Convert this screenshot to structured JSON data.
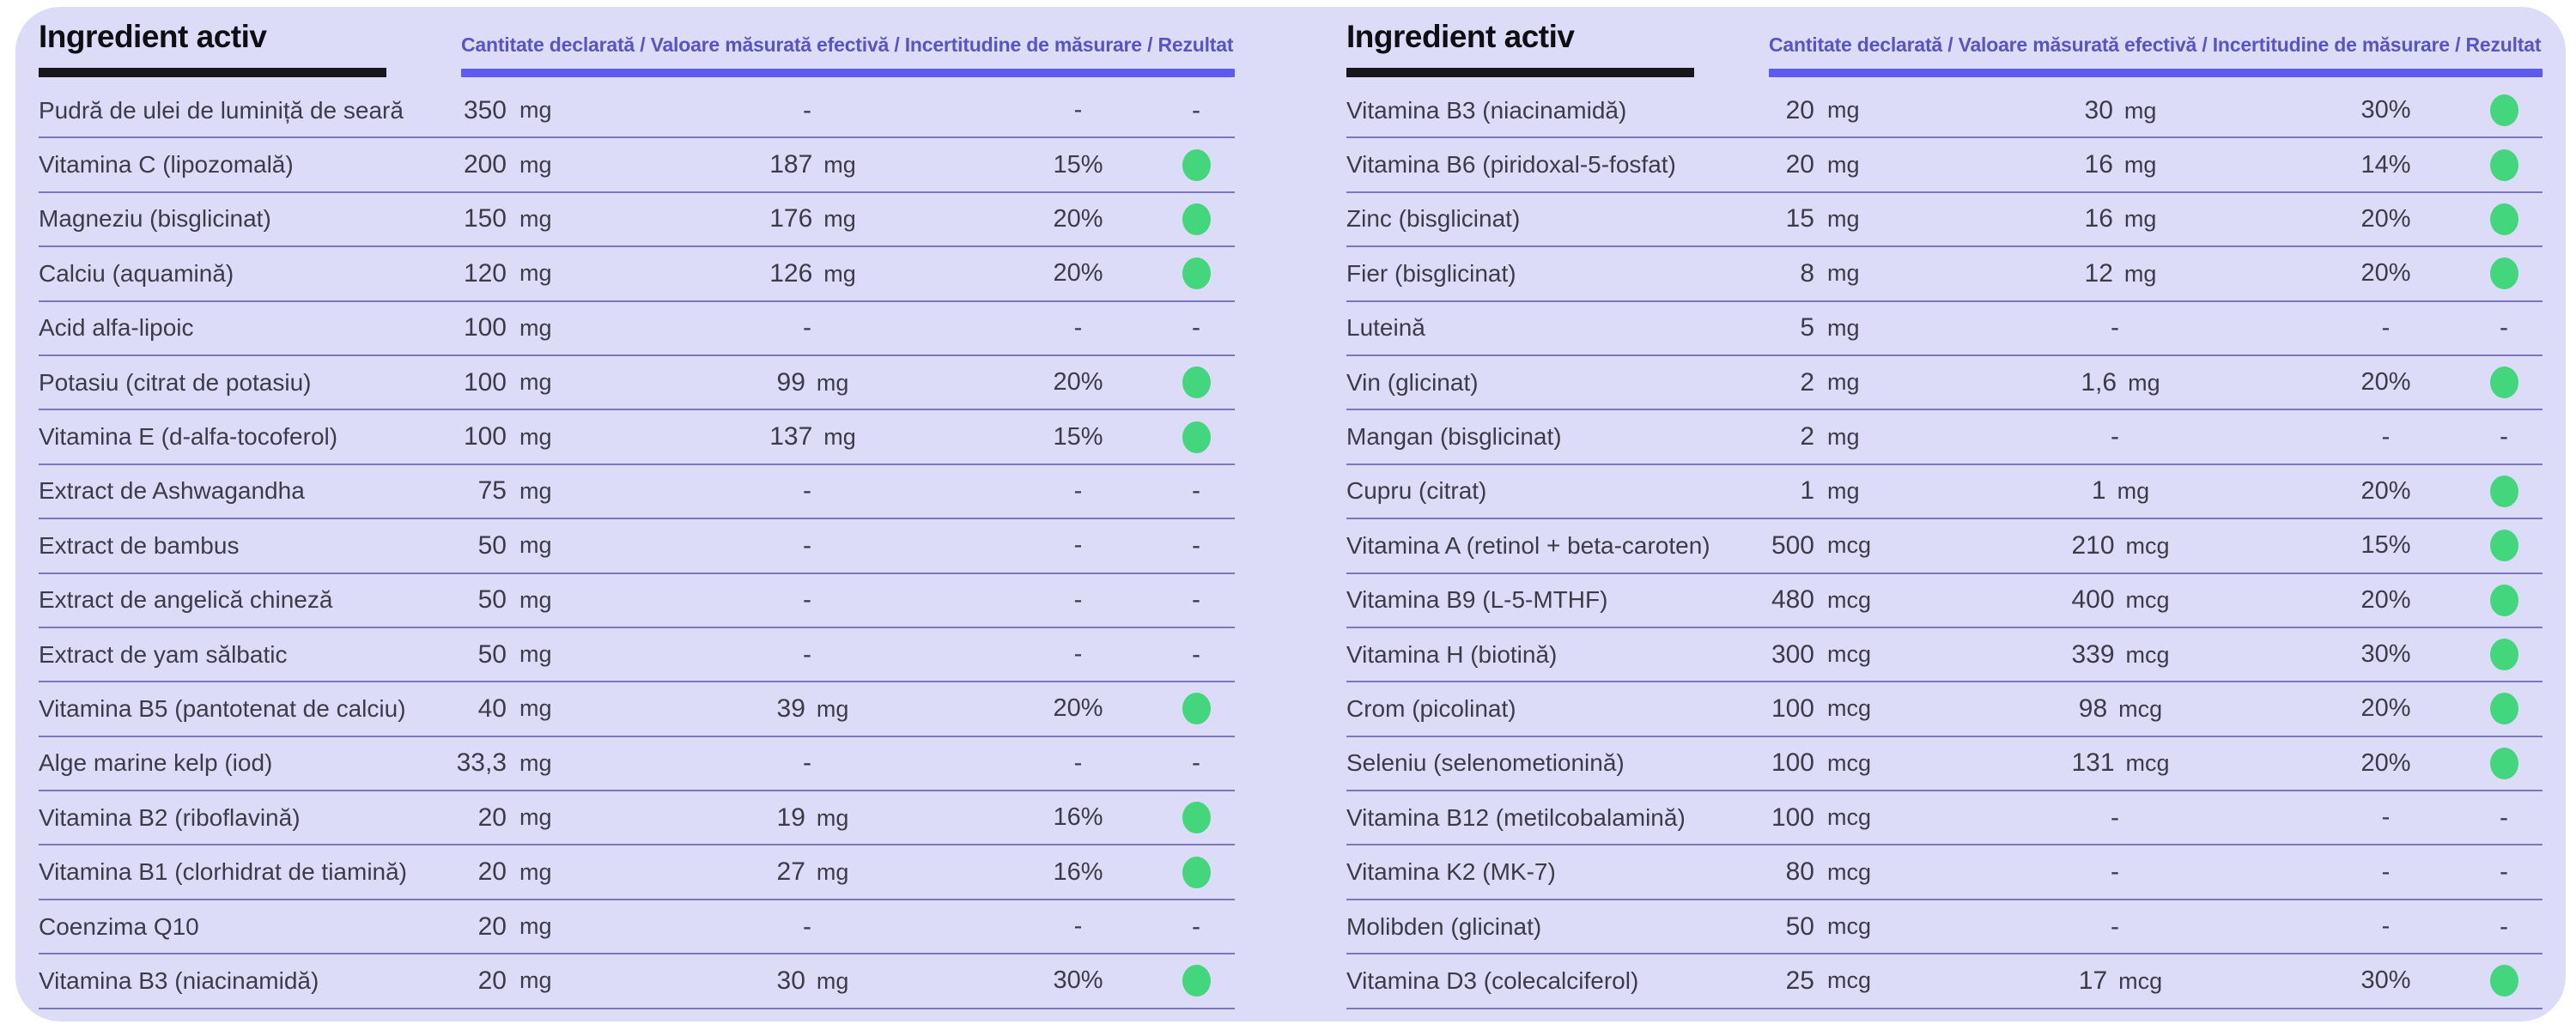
{
  "colors": {
    "page_background": "#ffffff",
    "panel_background": "#dcdcf8",
    "title_text": "#0f0e14",
    "title_underline": "#17161d",
    "columns_legend_text": "#5954c6",
    "columns_underline": "#5d5bef",
    "row_text": "#3c3b48",
    "row_separator": "#7b76bd",
    "pass_dot_green": "#43d67d"
  },
  "tables": [
    {
      "title": "Ingredient activ",
      "columns_label": "Cantitate declarată / Valoare măsurată efectivă / Incertitudine de măsurare / Rezultat",
      "rows": [
        {
          "name": "Pudră de ulei de luminiță de seară",
          "declared": "350",
          "declared_unit": "mg",
          "measured": "-",
          "measured_unit": "",
          "uncertainty": "-",
          "result": "-"
        },
        {
          "name": "Vitamina C (lipozomală)",
          "declared": "200",
          "declared_unit": "mg",
          "measured": "187",
          "measured_unit": "mg",
          "uncertainty": "15%",
          "result": "pass"
        },
        {
          "name": "Magneziu (bisglicinat)",
          "declared": "150",
          "declared_unit": "mg",
          "measured": "176",
          "measured_unit": "mg",
          "uncertainty": "20%",
          "result": "pass"
        },
        {
          "name": "Calciu (aquamină)",
          "declared": "120",
          "declared_unit": "mg",
          "measured": "126",
          "measured_unit": "mg",
          "uncertainty": "20%",
          "result": "pass"
        },
        {
          "name": "Acid alfa-lipoic",
          "declared": "100",
          "declared_unit": "mg",
          "measured": "-",
          "measured_unit": "",
          "uncertainty": "-",
          "result": "-"
        },
        {
          "name": "Potasiu (citrat de potasiu)",
          "declared": "100",
          "declared_unit": "mg",
          "measured": "99",
          "measured_unit": "mg",
          "uncertainty": "20%",
          "result": "pass"
        },
        {
          "name": "Vitamina E (d-alfa-tocoferol)",
          "declared": "100",
          "declared_unit": "mg",
          "measured": "137",
          "measured_unit": "mg",
          "uncertainty": "15%",
          "result": "pass"
        },
        {
          "name": "Extract de Ashwagandha",
          "declared": "75",
          "declared_unit": "mg",
          "measured": "-",
          "measured_unit": "",
          "uncertainty": "-",
          "result": "-"
        },
        {
          "name": "Extract de bambus",
          "declared": "50",
          "declared_unit": "mg",
          "measured": "-",
          "measured_unit": "",
          "uncertainty": "-",
          "result": "-"
        },
        {
          "name": "Extract de angelică chineză",
          "declared": "50",
          "declared_unit": "mg",
          "measured": "-",
          "measured_unit": "",
          "uncertainty": "-",
          "result": "-"
        },
        {
          "name": "Extract de yam sălbatic",
          "declared": "50",
          "declared_unit": "mg",
          "measured": "-",
          "measured_unit": "",
          "uncertainty": "-",
          "result": "-"
        },
        {
          "name": "Vitamina B5 (pantotenat de calciu)",
          "declared": "40",
          "declared_unit": "mg",
          "measured": "39",
          "measured_unit": "mg",
          "uncertainty": "20%",
          "result": "pass"
        },
        {
          "name": "Alge marine kelp (iod)",
          "declared": "33,3",
          "declared_unit": "mg",
          "measured": "-",
          "measured_unit": "",
          "uncertainty": "-",
          "result": "-"
        },
        {
          "name": "Vitamina B2 (riboflavină)",
          "declared": "20",
          "declared_unit": "mg",
          "measured": "19",
          "measured_unit": "mg",
          "uncertainty": "16%",
          "result": "pass"
        },
        {
          "name": "Vitamina B1 (clorhidrat de tiamină)",
          "declared": "20",
          "declared_unit": "mg",
          "measured": "27",
          "measured_unit": "mg",
          "uncertainty": "16%",
          "result": "pass"
        },
        {
          "name": "Coenzima Q10",
          "declared": "20",
          "declared_unit": "mg",
          "measured": "-",
          "measured_unit": "",
          "uncertainty": "-",
          "result": "-"
        },
        {
          "name": "Vitamina B3 (niacinamidă)",
          "declared": "20",
          "declared_unit": "mg",
          "measured": "30",
          "measured_unit": "mg",
          "uncertainty": "30%",
          "result": "pass"
        }
      ]
    },
    {
      "title": "Ingredient activ",
      "columns_label": "Cantitate declarată / Valoare măsurată efectivă / Incertitudine de măsurare / Rezultat",
      "rows": [
        {
          "name": "Vitamina B3 (niacinamidă)",
          "declared": "20",
          "declared_unit": "mg",
          "measured": "30",
          "measured_unit": "mg",
          "uncertainty": "30%",
          "result": "pass"
        },
        {
          "name": "Vitamina B6 (piridoxal-5-fosfat)",
          "declared": "20",
          "declared_unit": "mg",
          "measured": "16",
          "measured_unit": "mg",
          "uncertainty": "14%",
          "result": "pass"
        },
        {
          "name": "Zinc (bisglicinat)",
          "declared": "15",
          "declared_unit": "mg",
          "measured": "16",
          "measured_unit": "mg",
          "uncertainty": "20%",
          "result": "pass"
        },
        {
          "name": "Fier (bisglicinat)",
          "declared": "8",
          "declared_unit": "mg",
          "measured": "12",
          "measured_unit": "mg",
          "uncertainty": "20%",
          "result": "pass"
        },
        {
          "name": "Luteină",
          "declared": "5",
          "declared_unit": "mg",
          "measured": "-",
          "measured_unit": "",
          "uncertainty": "-",
          "result": "-"
        },
        {
          "name": "Vin (glicinat)",
          "declared": "2",
          "declared_unit": "mg",
          "measured": "1,6",
          "measured_unit": "mg",
          "uncertainty": "20%",
          "result": "pass"
        },
        {
          "name": "Mangan (bisglicinat)",
          "declared": "2",
          "declared_unit": "mg",
          "measured": "-",
          "measured_unit": "",
          "uncertainty": "-",
          "result": "-"
        },
        {
          "name": "Cupru (citrat)",
          "declared": "1",
          "declared_unit": "mg",
          "measured": "1",
          "measured_unit": "mg",
          "uncertainty": "20%",
          "result": "pass"
        },
        {
          "name": "Vitamina A (retinol + beta-caroten)",
          "declared": "500",
          "declared_unit": "mcg",
          "measured": "210",
          "measured_unit": "mcg",
          "uncertainty": "15%",
          "result": "pass"
        },
        {
          "name": "Vitamina B9 (L-5-MTHF)",
          "declared": "480",
          "declared_unit": "mcg",
          "measured": "400",
          "measured_unit": "mcg",
          "uncertainty": "20%",
          "result": "pass"
        },
        {
          "name": "Vitamina H (biotină)",
          "declared": "300",
          "declared_unit": "mcg",
          "measured": "339",
          "measured_unit": "mcg",
          "uncertainty": "30%",
          "result": "pass"
        },
        {
          "name": "Crom (picolinat)",
          "declared": "100",
          "declared_unit": "mcg",
          "measured": "98",
          "measured_unit": "mcg",
          "uncertainty": "20%",
          "result": "pass"
        },
        {
          "name": "Seleniu (selenometionină)",
          "declared": "100",
          "declared_unit": "mcg",
          "measured": "131",
          "measured_unit": "mcg",
          "uncertainty": "20%",
          "result": "pass"
        },
        {
          "name": "Vitamina B12 (metilcobalamină)",
          "declared": "100",
          "declared_unit": "mcg",
          "measured": "-",
          "measured_unit": "",
          "uncertainty": "-",
          "result": "-"
        },
        {
          "name": "Vitamina K2 (MK-7)",
          "declared": "80",
          "declared_unit": "mcg",
          "measured": "-",
          "measured_unit": "",
          "uncertainty": "-",
          "result": "-"
        },
        {
          "name": "Molibden (glicinat)",
          "declared": "50",
          "declared_unit": "mcg",
          "measured": "-",
          "measured_unit": "",
          "uncertainty": "-",
          "result": "-"
        },
        {
          "name": "Vitamina D3 (colecalciferol)",
          "declared": "25",
          "declared_unit": "mcg",
          "measured": "17",
          "measured_unit": "mcg",
          "uncertainty": "30%",
          "result": "pass"
        }
      ]
    }
  ]
}
